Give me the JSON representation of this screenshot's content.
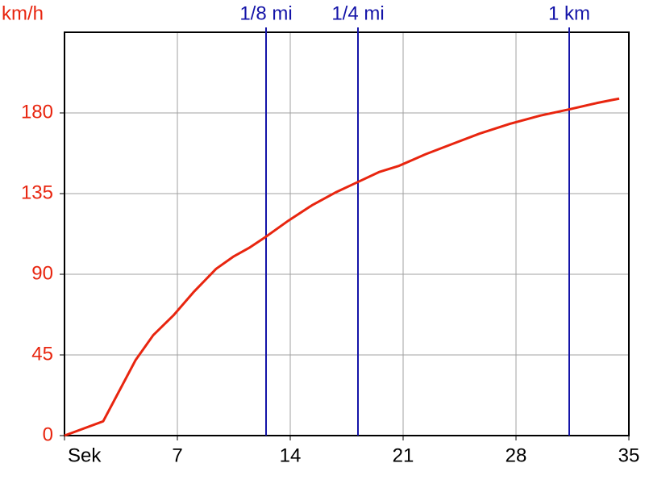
{
  "chart_data": {
    "type": "line",
    "y_label": "km/h",
    "x": [
      0,
      2.4,
      4.4,
      5.5,
      6.75,
      8,
      9.4,
      10.5,
      11.5,
      12.5,
      13.9,
      15.35,
      16.8,
      18.2,
      19.5,
      20.75,
      22.4,
      24,
      25.75,
      27.65,
      29.5,
      31.3,
      33,
      34.4
    ],
    "series": [
      {
        "color": "#e8250f",
        "values": [
          0,
          8,
          42,
          56,
          67,
          80,
          93,
          100,
          105,
          111,
          120,
          128.5,
          135.6,
          141.5,
          147,
          150.5,
          157,
          162.5,
          168.5,
          174,
          178.5,
          182,
          185.5,
          188
        ]
      }
    ],
    "xlim": [
      0,
      35
    ],
    "xticks": [
      {
        "value": 0,
        "label": "Sek"
      },
      7,
      14,
      21,
      28,
      35
    ],
    "ylim": [
      0,
      225
    ],
    "yticks": [
      0,
      45,
      90,
      135,
      180
    ],
    "grid": true,
    "markers": [
      {
        "label": "1/8 mi",
        "x": 12.5
      },
      {
        "label": "1/4 mi",
        "x": 18.2
      },
      {
        "label": "1 km",
        "x": 31.3
      }
    ],
    "marker_color": "#1414a8"
  }
}
